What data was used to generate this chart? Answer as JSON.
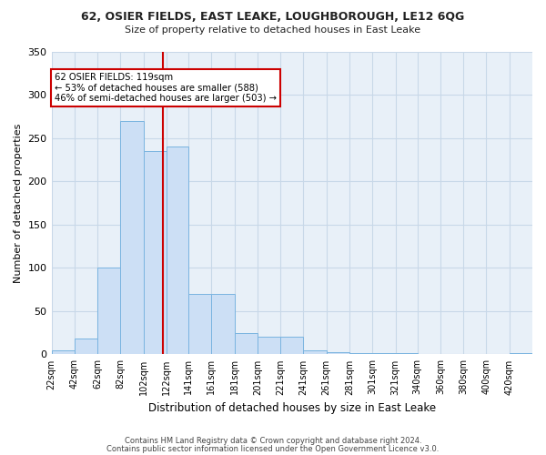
{
  "title1": "62, OSIER FIELDS, EAST LEAKE, LOUGHBOROUGH, LE12 6QG",
  "title2": "Size of property relative to detached houses in East Leake",
  "xlabel": "Distribution of detached houses by size in East Leake",
  "ylabel": "Number of detached properties",
  "footer1": "Contains HM Land Registry data © Crown copyright and database right 2024.",
  "footer2": "Contains public sector information licensed under the Open Government Licence v3.0.",
  "annotation_line1": "62 OSIER FIELDS: 119sqm",
  "annotation_line2": "← 53% of detached houses are smaller (588)",
  "annotation_line3": "46% of semi-detached houses are larger (503) →",
  "property_sqm": 119,
  "bar_color": "#ccdff5",
  "bar_edge_color": "#7ab4e0",
  "grid_color": "#c8d8e8",
  "background_color": "#e8f0f8",
  "redline_color": "#cc0000",
  "annotation_box_edge": "#cc0000",
  "bins": [
    22,
    42,
    62,
    82,
    102,
    122,
    141,
    161,
    181,
    201,
    221,
    241,
    261,
    281,
    301,
    321,
    340,
    360,
    380,
    400,
    420
  ],
  "values": [
    5,
    18,
    100,
    270,
    235,
    240,
    70,
    70,
    25,
    20,
    20,
    5,
    3,
    2,
    2,
    2,
    0,
    0,
    0,
    0,
    2
  ],
  "ylim": [
    0,
    350
  ],
  "yticks": [
    0,
    50,
    100,
    150,
    200,
    250,
    300,
    350
  ]
}
